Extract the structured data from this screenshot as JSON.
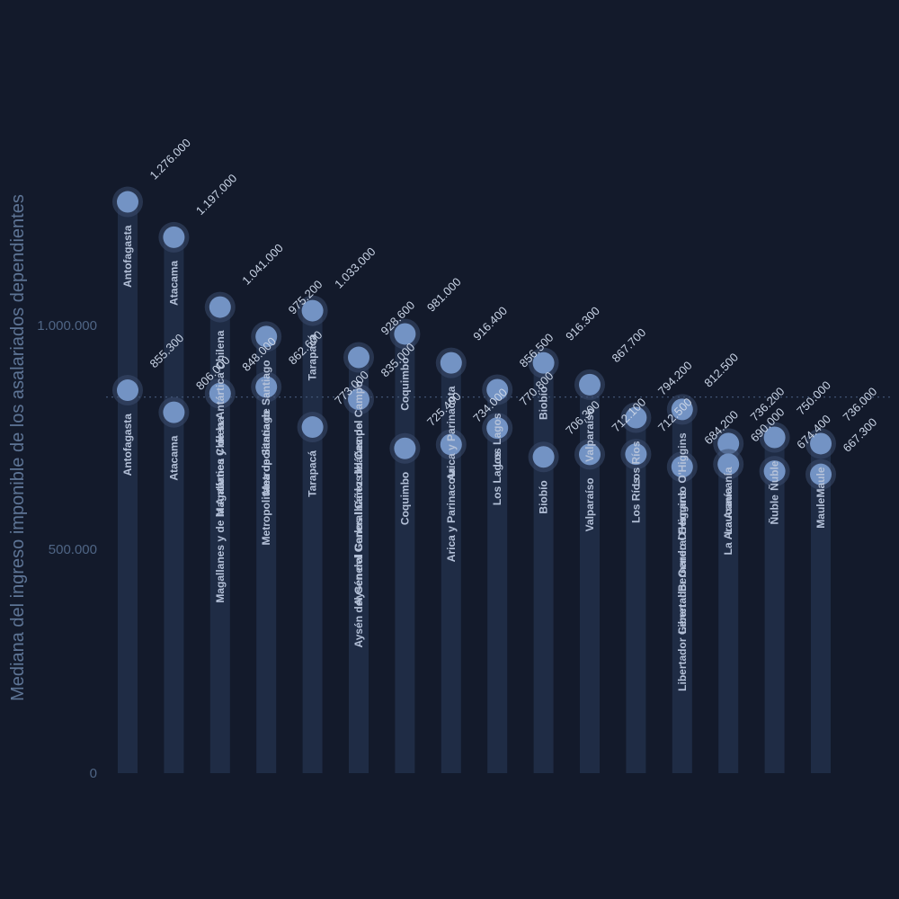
{
  "chart_data": {
    "type": "lollipop",
    "ylabel": "Mediana del ingreso imponible de los asalariados dependientes",
    "yticks": [
      {
        "value": 0,
        "label": "0"
      },
      {
        "value": 500000,
        "label": "500.000"
      },
      {
        "value": 1000000,
        "label": "1.000.000"
      }
    ],
    "ylim": [
      0,
      1400000
    ],
    "reference_line": 840000,
    "grid": false,
    "colors": {
      "background": "#131a2b",
      "bar": "#1f2c45",
      "dot": "#7393c4",
      "halo": "#3a4d6e",
      "reference": "#44587a"
    },
    "series": [
      {
        "points": [
          {
            "category": "Antofagasta",
            "value": 1276000,
            "label": "1.276.000"
          },
          {
            "category": "Atacama",
            "value": 1197000,
            "label": "1.197.000"
          },
          {
            "category": "Magallanes y de la Antártica Chilena",
            "value": 1041000,
            "label": "1.041.000"
          },
          {
            "category": "Metropolitana de Santiago",
            "value": 975200,
            "label": "975.200"
          },
          {
            "category": "Tarapacá",
            "value": 1033000,
            "label": "1.033.000"
          },
          {
            "category": "Aysén del General Carlos Ibáñez del Campo",
            "value": 928600,
            "label": "928.600"
          },
          {
            "category": "Coquimbo",
            "value": 981000,
            "label": "981.000"
          },
          {
            "category": "Arica y Parinacota",
            "value": 916400,
            "label": "916.400"
          },
          {
            "category": "Los Lagos",
            "value": 856500,
            "label": "856.500"
          },
          {
            "category": "Biobío",
            "value": 916300,
            "label": "916.300"
          },
          {
            "category": "Valparaíso",
            "value": 867700,
            "label": "867.700"
          },
          {
            "category": "Los Ríos",
            "value": 794200,
            "label": "794.200"
          },
          {
            "category": "Libertador General Bernardo O'Higgins",
            "value": 812500,
            "label": "812.500"
          },
          {
            "category": "La Araucanía",
            "value": 736200,
            "label": "736.200"
          },
          {
            "category": "Ñuble",
            "value": 750000,
            "label": "750.000"
          },
          {
            "category": "Maule",
            "value": 736000,
            "label": "736.000"
          }
        ]
      },
      {
        "points": [
          {
            "category": "Antofagasta",
            "value": 855300,
            "label": "855.300"
          },
          {
            "category": "Atacama",
            "value": 806000,
            "label": "806.000"
          },
          {
            "category": "Magallanes y de la Antártica Chilena",
            "value": 848000,
            "label": "848.000"
          },
          {
            "category": "Metropolitana de Santiago",
            "value": 862600,
            "label": "862.600"
          },
          {
            "category": "Tarapacá",
            "value": 773000,
            "label": "773.000"
          },
          {
            "category": "Aysén del General Carlos Ibáñez del Campo",
            "value": 835000,
            "label": "835.000"
          },
          {
            "category": "Coquimbo",
            "value": 725400,
            "label": "725.400"
          },
          {
            "category": "Arica y Parinacota",
            "value": 734000,
            "label": "734.000"
          },
          {
            "category": "Los Lagos",
            "value": 770800,
            "label": "770.800"
          },
          {
            "category": "Biobío",
            "value": 706300,
            "label": "706.300"
          },
          {
            "category": "Valparaíso",
            "value": 712100,
            "label": "712.100"
          },
          {
            "category": "Los Ríos",
            "value": 712500,
            "label": "712.500"
          },
          {
            "category": "Libertador General Bernardo O'Higgins",
            "value": 684200,
            "label": "684.200"
          },
          {
            "category": "La Araucanía",
            "value": 690000,
            "label": "690.000"
          },
          {
            "category": "Ñuble",
            "value": 674400,
            "label": "674.400"
          },
          {
            "category": "Maule",
            "value": 667300,
            "label": "667.300"
          }
        ]
      }
    ]
  }
}
